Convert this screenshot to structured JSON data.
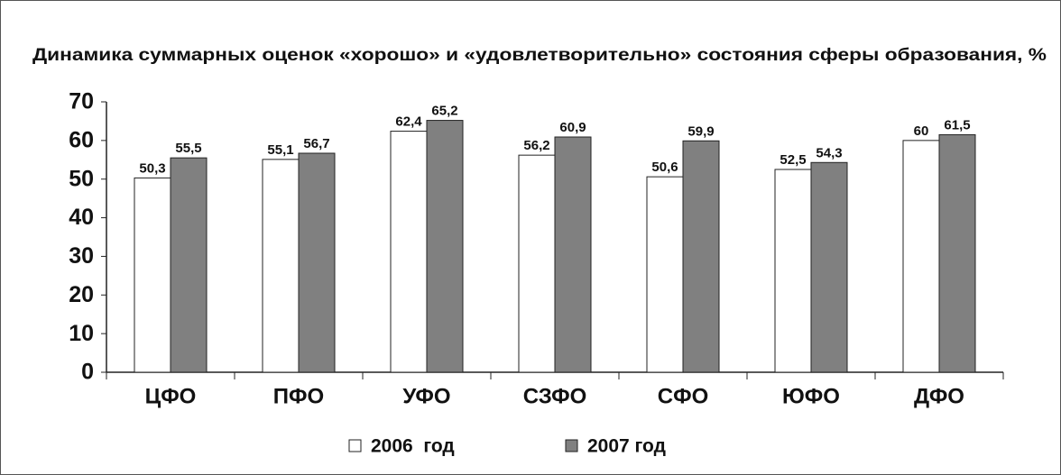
{
  "chart_data": {
    "type": "bar",
    "title": "Динамика суммарных оценок «хорошо» и «удовлетворительно» состояния сферы образования, %",
    "categories": [
      "ЦФО",
      "ПФО",
      "УФО",
      "СЗФО",
      "СФО",
      "ЮФО",
      "ДФО"
    ],
    "series": [
      {
        "name": "2006  год",
        "color": "#ffffff",
        "values": [
          50.3,
          55.1,
          62.4,
          56.2,
          50.6,
          52.5,
          60
        ],
        "value_labels": [
          "50,3",
          "55,1",
          "62,4",
          "56,2",
          "50,6",
          "52,5",
          "60"
        ]
      },
      {
        "name": "2007 год",
        "color": "#808080",
        "values": [
          55.5,
          56.7,
          65.2,
          60.9,
          59.9,
          54.3,
          61.5
        ],
        "value_labels": [
          "55,5",
          "56,7",
          "65,2",
          "60,9",
          "59,9",
          "54,3",
          "61,5"
        ]
      }
    ],
    "ylim": [
      0,
      70
    ],
    "yticks": [
      0,
      10,
      20,
      30,
      40,
      50,
      60,
      70
    ],
    "legend": "bottom"
  }
}
